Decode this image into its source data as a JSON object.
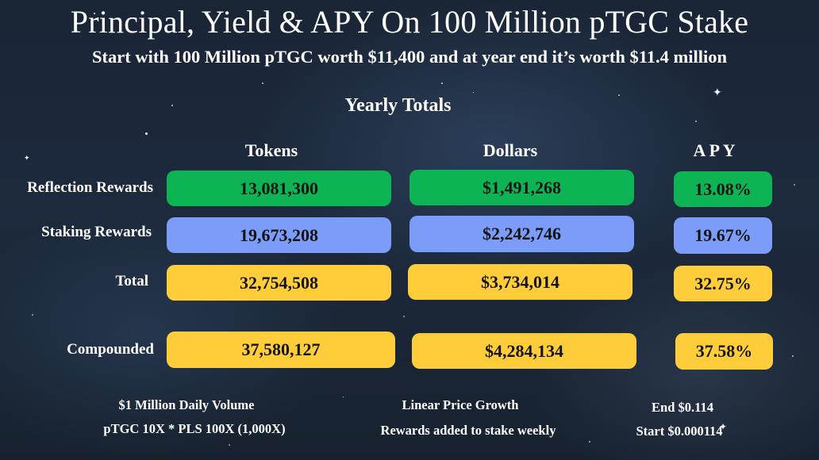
{
  "title": "Principal, Yield & APY On 100 Million pTGC Stake",
  "subtitle": "Start with 100 Million pTGC worth $11,400 and at year end it’s worth $11.4 million",
  "section_title": "Yearly Totals",
  "columns": [
    "Tokens",
    "Dollars",
    "A P Y"
  ],
  "rows": [
    {
      "label": "Reflection Rewards",
      "tokens": "13,081,300",
      "dollars": "$1,491,268",
      "apy": "13.08%",
      "color": "#0cb454"
    },
    {
      "label": "Staking Rewards",
      "tokens": "19,673,208",
      "dollars": "$2,242,746",
      "apy": "19.67%",
      "color": "#7b9cf8"
    },
    {
      "label": "Total",
      "tokens": "32,754,508",
      "dollars": "$3,734,014",
      "apy": "32.75%",
      "color": "#ffcd3a"
    },
    {
      "label": "Compounded",
      "tokens": "37,580,127",
      "dollars": "$4,284,134",
      "apy": "37.58%",
      "color": "#ffcd3a"
    }
  ],
  "footer": {
    "left": [
      "$1 Million Daily Volume",
      "pTGC 10X * PLS 100X (1,000X)"
    ],
    "middle": [
      "Linear Price Growth",
      "Rewards added to stake weekly"
    ],
    "right": [
      "End $0.114",
      "Start $0.000114"
    ]
  }
}
